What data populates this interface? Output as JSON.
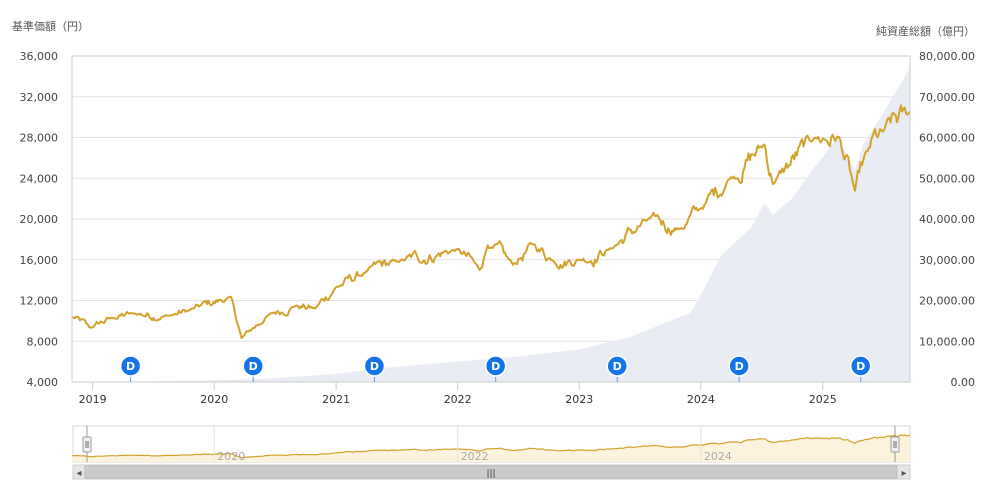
{
  "chart_data": {
    "type": "line",
    "left_axis_title": "基準価額（円）",
    "right_axis_title": "純資産総額（億円）",
    "y_left": {
      "min": 4000,
      "max": 36000,
      "ticks": [
        "4,000",
        "8,000",
        "12,000",
        "16,000",
        "20,000",
        "24,000",
        "28,000",
        "32,000",
        "36,000"
      ]
    },
    "y_right": {
      "min": 0,
      "max": 80000,
      "ticks": [
        "0.00",
        "10,000.00",
        "20,000.00",
        "30,000.00",
        "40,000.00",
        "50,000.00",
        "60,000.00",
        "70,000.00",
        "80,000.00"
      ]
    },
    "x_range": [
      "2018-10-31",
      "2025-09-20"
    ],
    "x_tick_labels": [
      {
        "label": "2019",
        "date": "2019-01-01"
      },
      {
        "label": "2020",
        "date": "2020-01-01"
      },
      {
        "label": "2021",
        "date": "2021-01-01"
      },
      {
        "label": "2022",
        "date": "2022-01-01"
      },
      {
        "label": "2023",
        "date": "2023-01-01"
      },
      {
        "label": "2024",
        "date": "2024-01-01"
      },
      {
        "label": "2025",
        "date": "2025-01-01"
      }
    ],
    "series": [
      {
        "color": "#d2a22c",
        "style": "line",
        "axis": "left",
        "points": [
          [
            "2018-10-31",
            10400
          ],
          [
            "2018-12-25",
            9300
          ],
          [
            "2019-03-01",
            10300
          ],
          [
            "2019-05-01",
            10700
          ],
          [
            "2019-08-15",
            10500
          ],
          [
            "2019-10-15",
            11000
          ],
          [
            "2020-02-20",
            12300
          ],
          [
            "2020-03-23",
            8300
          ],
          [
            "2020-06-10",
            10500
          ],
          [
            "2020-09-01",
            11500
          ],
          [
            "2020-10-30",
            11200
          ],
          [
            "2021-01-01",
            13300
          ],
          [
            "2021-04-01",
            14800
          ],
          [
            "2021-07-01",
            15800
          ],
          [
            "2021-12-31",
            17000
          ],
          [
            "2022-03-08",
            15000
          ],
          [
            "2022-04-01",
            17500
          ],
          [
            "2022-06-16",
            15500
          ],
          [
            "2022-08-16",
            17500
          ],
          [
            "2022-10-13",
            16000
          ],
          [
            "2023-01-01",
            16000
          ],
          [
            "2023-04-01",
            17000
          ],
          [
            "2023-07-31",
            20000
          ],
          [
            "2023-10-27",
            19000
          ],
          [
            "2023-12-31",
            21000
          ],
          [
            "2024-03-28",
            24000
          ],
          [
            "2024-07-10",
            27300
          ],
          [
            "2024-08-05",
            23500
          ],
          [
            "2024-12-06",
            28000
          ],
          [
            "2025-02-19",
            28000
          ],
          [
            "2025-04-08",
            22700
          ],
          [
            "2025-05-15",
            26500
          ],
          [
            "2025-06-30",
            28500
          ],
          [
            "2025-09-20",
            30500
          ]
        ]
      },
      {
        "color": "#e9edf3",
        "style": "area",
        "axis": "right",
        "points": [
          [
            "2018-10-31",
            0
          ],
          [
            "2019-06-01",
            150
          ],
          [
            "2020-01-01",
            400
          ],
          [
            "2020-06-01",
            800
          ],
          [
            "2021-01-01",
            2000
          ],
          [
            "2021-06-01",
            3500
          ],
          [
            "2022-01-01",
            5000
          ],
          [
            "2022-06-01",
            6000
          ],
          [
            "2023-01-01",
            8000
          ],
          [
            "2023-06-01",
            11000
          ],
          [
            "2023-12-01",
            17000
          ],
          [
            "2024-01-05",
            22000
          ],
          [
            "2024-03-01",
            31000
          ],
          [
            "2024-06-01",
            38000
          ],
          [
            "2024-07-10",
            44000
          ],
          [
            "2024-08-05",
            41000
          ],
          [
            "2024-10-01",
            45000
          ],
          [
            "2024-12-01",
            52000
          ],
          [
            "2025-02-15",
            60000
          ],
          [
            "2025-04-08",
            52000
          ],
          [
            "2025-05-01",
            58000
          ],
          [
            "2025-07-01",
            66000
          ],
          [
            "2025-09-20",
            77000
          ]
        ]
      }
    ],
    "dividend_markers": {
      "label": "D",
      "color": "#1473e6",
      "dates": [
        "2019-04-25",
        "2020-04-27",
        "2021-04-26",
        "2022-04-25",
        "2023-04-25",
        "2024-04-25",
        "2025-04-25"
      ]
    },
    "navigator": {
      "x_tick_labels": [
        {
          "label": "2020",
          "date": "2020-01-01"
        },
        {
          "label": "2022",
          "date": "2022-01-01"
        },
        {
          "label": "2024",
          "date": "2024-01-01"
        }
      ],
      "scroll_arrow_left": "◂",
      "scroll_arrow_right": "▸",
      "handle_grip": "|||"
    }
  }
}
